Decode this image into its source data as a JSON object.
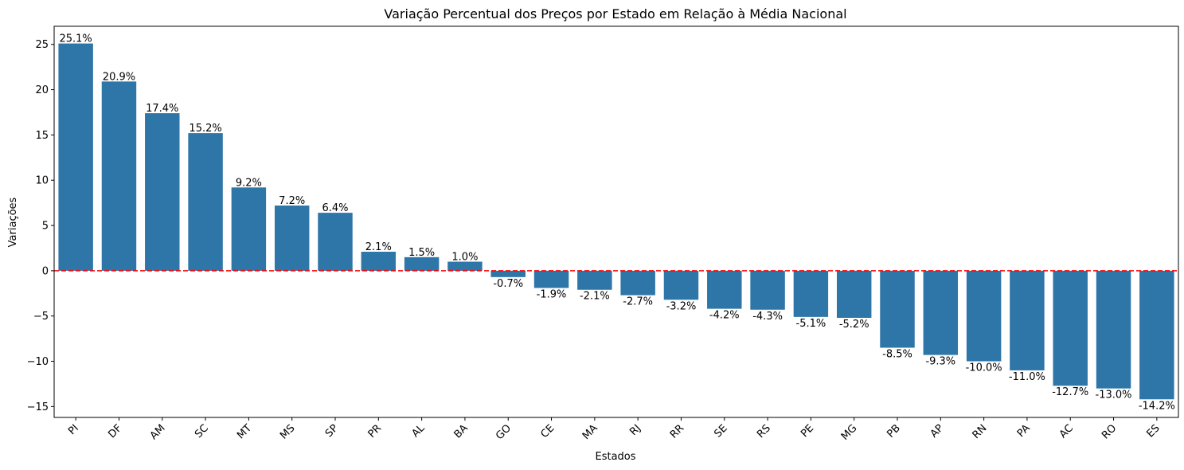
{
  "chart_data": {
    "type": "bar",
    "title": "Variação Percentual dos Preços por Estado em Relação à Média Nacional",
    "xlabel": "Estados",
    "ylabel": "Variações",
    "categories": [
      "PI",
      "DF",
      "AM",
      "SC",
      "MT",
      "MS",
      "SP",
      "PR",
      "AL",
      "BA",
      "GO",
      "CE",
      "MA",
      "RJ",
      "RR",
      "SE",
      "RS",
      "PE",
      "MG",
      "PB",
      "AP",
      "RN",
      "PA",
      "AC",
      "RO",
      "ES"
    ],
    "values": [
      25.1,
      20.9,
      17.4,
      15.2,
      9.2,
      7.2,
      6.4,
      2.1,
      1.5,
      1.0,
      -0.7,
      -1.9,
      -2.1,
      -2.7,
      -3.2,
      -4.2,
      -4.3,
      -5.1,
      -5.2,
      -8.5,
      -9.3,
      -10.0,
      -11.0,
      -12.7,
      -13.0,
      -14.2
    ],
    "data_labels": [
      "25.1%",
      "20.9%",
      "17.4%",
      "15.2%",
      "9.2%",
      "7.2%",
      "6.4%",
      "2.1%",
      "1.5%",
      "1.0%",
      "-0.7%",
      "-1.9%",
      "-2.1%",
      "-2.7%",
      "-3.2%",
      "-4.2%",
      "-4.3%",
      "-5.1%",
      "-5.2%",
      "-8.5%",
      "-9.3%",
      "-10.0%",
      "-11.0%",
      "-12.7%",
      "-13.0%",
      "-14.2%"
    ],
    "yticks": [
      -15,
      -10,
      -5,
      0,
      5,
      10,
      15,
      20,
      25
    ],
    "ytick_labels": [
      "−15",
      "−10",
      "−5",
      "0",
      "5",
      "10",
      "15",
      "20",
      "25"
    ],
    "ylim": [
      -16.2,
      27.0
    ],
    "reference_line": {
      "value": 0,
      "style": "dashed",
      "color": "#ff0000"
    },
    "grid": false,
    "bar_color": "#2e75a8",
    "xtick_rotation_deg": 45
  }
}
